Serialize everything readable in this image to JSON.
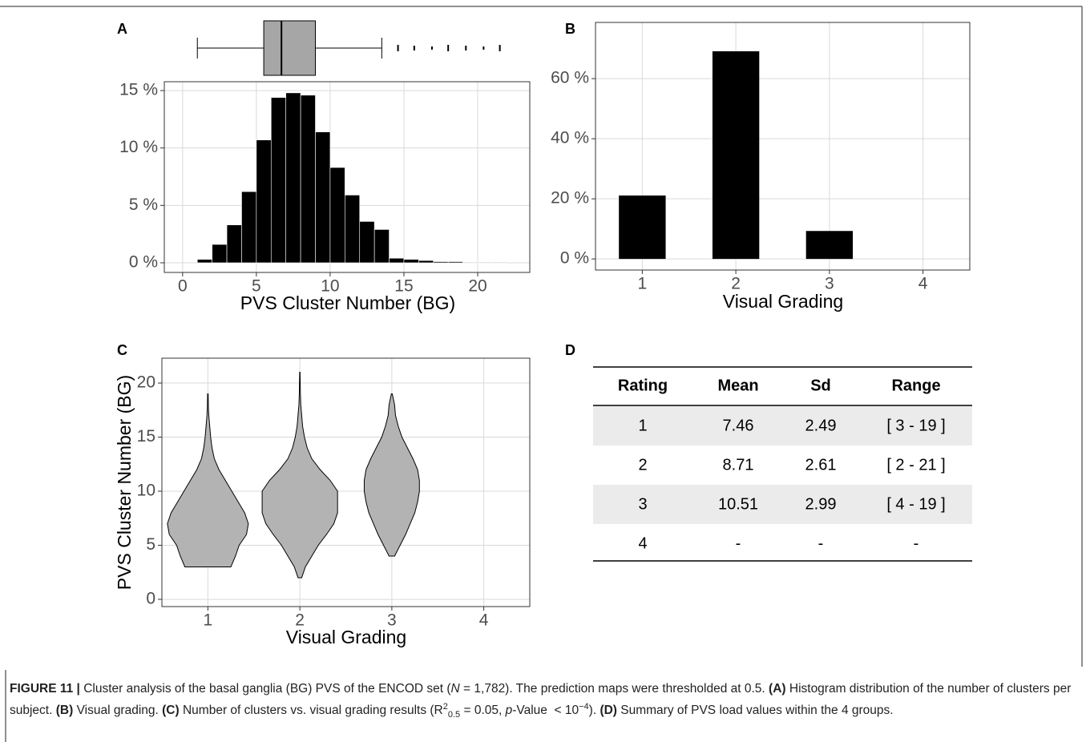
{
  "chart_data": [
    {
      "type": "histogram",
      "panel": "A",
      "xlabel": "PVS Cluster Number (BG)",
      "bins": [
        1,
        2,
        3,
        4,
        5,
        6,
        7,
        8,
        9,
        10,
        11,
        12,
        13,
        14,
        15,
        16,
        17,
        18,
        19,
        20,
        21,
        22
      ],
      "values": [
        0.3,
        1.6,
        3.3,
        6.2,
        10.7,
        14.4,
        14.8,
        14.6,
        11.4,
        8.3,
        5.9,
        3.6,
        2.9,
        0.4,
        0.3,
        0.2,
        0.1,
        0.1,
        0.05,
        0.05,
        0.05
      ],
      "color": "#000000",
      "box": {
        "min": 1,
        "q1": 5.5,
        "median": 6.7,
        "q3": 9,
        "max": 13.5,
        "outliers": [
          14.6,
          15.7,
          16.9,
          18,
          19.2,
          20.4,
          21.5
        ],
        "color": "#a6a6a6"
      },
      "xlim": [
        -1.24,
        23.53
      ],
      "xticks": [
        0,
        5,
        10,
        15,
        20
      ],
      "ylim": [
        -0.84,
        15.77
      ],
      "yticks": [
        {
          "value": 0,
          "label": "0 %"
        },
        {
          "value": 5,
          "label": "5 %"
        },
        {
          "value": 10,
          "label": "10 %"
        },
        {
          "value": 15,
          "label": "15 %"
        }
      ],
      "grid": true
    },
    {
      "type": "bar",
      "panel": "B",
      "xlabel": "Visual Grading",
      "categories": [
        "1",
        "2",
        "3",
        "4"
      ],
      "values": [
        21.1,
        69.1,
        9.3,
        0
      ],
      "color": "#000000",
      "ylim": [
        -3.7,
        78.7
      ],
      "yticks": [
        {
          "value": 0,
          "label": "0 %"
        },
        {
          "value": 20,
          "label": "20 %"
        },
        {
          "value": 40,
          "label": "40 %"
        },
        {
          "value": 60,
          "label": "60 %"
        }
      ],
      "grid": true
    },
    {
      "type": "violin",
      "panel": "C",
      "xlabel": "Visual Grading",
      "ylabel": "PVS Cluster Number (BG)",
      "categories": [
        "1",
        "2",
        "3",
        "4"
      ],
      "color": "#b3b3b3",
      "violins": [
        {
          "y": [
            3,
            4,
            5,
            6,
            7,
            8,
            9,
            10,
            11,
            12,
            13,
            14,
            15,
            16,
            17,
            18,
            19
          ],
          "density": [
            0.25,
            0.3,
            0.34,
            0.42,
            0.44,
            0.4,
            0.33,
            0.26,
            0.19,
            0.12,
            0.07,
            0.045,
            0.03,
            0.02,
            0.01,
            0.005,
            0.003
          ]
        },
        {
          "y": [
            2,
            3,
            4,
            5,
            6,
            7,
            8,
            9,
            10,
            11,
            12,
            13,
            14,
            15,
            16,
            17,
            18,
            19,
            20,
            21
          ],
          "density": [
            0.02,
            0.06,
            0.13,
            0.2,
            0.29,
            0.37,
            0.41,
            0.41,
            0.41,
            0.33,
            0.22,
            0.13,
            0.08,
            0.05,
            0.03,
            0.02,
            0.01,
            0.006,
            0.004,
            0.002
          ]
        },
        {
          "y": [
            4,
            5,
            6,
            7,
            8,
            9,
            10,
            11,
            12,
            13,
            14,
            15,
            16,
            17,
            18,
            19
          ],
          "density": [
            0.03,
            0.09,
            0.15,
            0.2,
            0.25,
            0.28,
            0.3,
            0.3,
            0.28,
            0.23,
            0.17,
            0.11,
            0.07,
            0.04,
            0.03,
            0.005
          ]
        }
      ],
      "ylim": [
        -0.67,
        22.3
      ],
      "yticks": [
        0,
        5,
        10,
        15,
        20
      ],
      "grid": true
    }
  ],
  "table": {
    "panel": "D",
    "header": [
      "Rating",
      "Mean",
      "Sd",
      "Range"
    ],
    "rows": [
      [
        "1",
        "7.46",
        "2.49",
        "[ 3 - 19 ]"
      ],
      [
        "2",
        "8.71",
        "2.61",
        "[ 2 - 21 ]"
      ],
      [
        "3",
        "10.51",
        "2.99",
        "[ 4 - 19 ]"
      ],
      [
        "4",
        "-",
        "-",
        "-"
      ]
    ]
  },
  "caption": [
    {
      "text": "FIGURE 11 |",
      "style": "bold"
    },
    {
      "text": " Cluster analysis of the basal ganglia (BG) PVS of the ENCOD set ("
    },
    {
      "text": "N",
      "style": "italic"
    },
    {
      "text": " = 1,782). The prediction maps were thresholded at 0.5. "
    },
    {
      "text": "(A)",
      "style": "bold"
    },
    {
      "text": " Histogram distribution of the number of clusters per subject. "
    },
    {
      "text": "(B)",
      "style": "bold"
    },
    {
      "text": " Visual grading. "
    },
    {
      "text": "(C)",
      "style": "bold"
    },
    {
      "text": " Number of clusters vs. visual grading results (R"
    },
    {
      "text": "2",
      "style": "sup"
    },
    {
      "text": "0.5",
      "style": "sub"
    },
    {
      "text": " = 0.05, "
    },
    {
      "text": "p",
      "style": "italic"
    },
    {
      "text": "-Value  < 10"
    },
    {
      "text": "−4",
      "style": "sup"
    },
    {
      "text": "). "
    },
    {
      "text": "(D)",
      "style": "bold"
    },
    {
      "text": " Summary of PVS load values within the 4 groups."
    }
  ]
}
